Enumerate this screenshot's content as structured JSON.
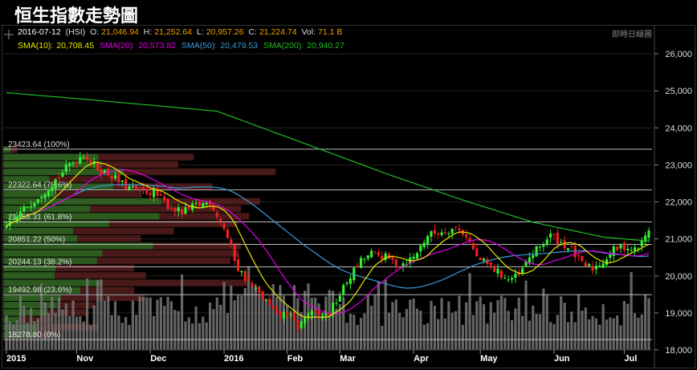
{
  "title": "恒生指數走勢圖",
  "header": {
    "date": "2016-07-12",
    "symbol": "(HSI)",
    "open_label": "O:",
    "open": "21,046.94",
    "high_label": "H:",
    "high": "21,252.64",
    "low_label": "L:",
    "low": "20,957.26",
    "close_label": "C:",
    "close": "21,224.74",
    "vol_label": "Vol:",
    "vol": "71.1 B",
    "control": "即時日線圖"
  },
  "sma": [
    {
      "label": "SMA(10):",
      "value": "20,708.45",
      "color": "#e8e800"
    },
    {
      "label": "SMA(20):",
      "value": "20,573.82",
      "color": "#e000e0"
    },
    {
      "label": "SMA(50):",
      "value": "20,479.53",
      "color": "#3a9ad9"
    },
    {
      "label": "SMA(200):",
      "value": "20,940.27",
      "color": "#22bb22"
    }
  ],
  "colors": {
    "up": "#33ee33",
    "down": "#ee2020",
    "volume": "#777777",
    "fib": "#bbbbbb",
    "grid": "#222222"
  },
  "chart_data": {
    "type": "candlestick",
    "ylim": [
      18000,
      26500
    ],
    "y_ticks": [
      "26,000",
      "25,000",
      "24,000",
      "23,000",
      "22,000",
      "21,000",
      "20,000",
      "19,000",
      "18,000"
    ],
    "x_labels": [
      {
        "label": "2015",
        "index": 0
      },
      {
        "label": "Nov",
        "index": 20
      },
      {
        "label": "Dec",
        "index": 41
      },
      {
        "label": "2016",
        "index": 62
      },
      {
        "label": "Feb",
        "index": 80
      },
      {
        "label": "Mar",
        "index": 95
      },
      {
        "label": "Apr",
        "index": 116
      },
      {
        "label": "May",
        "index": 135
      },
      {
        "label": "Jun",
        "index": 156
      },
      {
        "label": "Jul",
        "index": 176
      }
    ],
    "fib_levels": [
      {
        "label": "23423.64 (100%)",
        "value": 23423.64
      },
      {
        "label": "22322.64 (78.6%)",
        "value": 22322.64
      },
      {
        "label": "21458.31 (61.8%)",
        "value": 21458.31
      },
      {
        "label": "20851.22 (50%)",
        "value": 20851.22
      },
      {
        "label": "20244.13 (38.2%)",
        "value": 20244.13
      },
      {
        "label": "19492.98 (23.6%)",
        "value": 19492.98
      },
      {
        "label": "18278.80 (0%)",
        "value": 18278.8
      }
    ],
    "candles": 184,
    "close_anchors": [
      [
        0,
        21300
      ],
      [
        6,
        21900
      ],
      [
        12,
        22400
      ],
      [
        18,
        23000
      ],
      [
        22,
        23300
      ],
      [
        26,
        22900
      ],
      [
        30,
        22700
      ],
      [
        34,
        22400
      ],
      [
        38,
        22300
      ],
      [
        42,
        22250
      ],
      [
        46,
        21900
      ],
      [
        50,
        21700
      ],
      [
        54,
        21900
      ],
      [
        58,
        22000
      ],
      [
        62,
        21300
      ],
      [
        66,
        20200
      ],
      [
        70,
        19700
      ],
      [
        74,
        19300
      ],
      [
        77,
        18900
      ],
      [
        80,
        19000
      ],
      [
        83,
        18600
      ],
      [
        86,
        19000
      ],
      [
        89,
        18900
      ],
      [
        92,
        19000
      ],
      [
        95,
        19500
      ],
      [
        98,
        20000
      ],
      [
        101,
        20400
      ],
      [
        104,
        20600
      ],
      [
        108,
        20500
      ],
      [
        112,
        20300
      ],
      [
        116,
        20500
      ],
      [
        120,
        21100
      ],
      [
        124,
        21200
      ],
      [
        128,
        21300
      ],
      [
        131,
        21100
      ],
      [
        134,
        20500
      ],
      [
        137,
        20300
      ],
      [
        140,
        20100
      ],
      [
        143,
        19900
      ],
      [
        146,
        20000
      ],
      [
        149,
        20500
      ],
      [
        152,
        20800
      ],
      [
        155,
        21100
      ],
      [
        158,
        20900
      ],
      [
        161,
        20700
      ],
      [
        164,
        20300
      ],
      [
        167,
        20200
      ],
      [
        170,
        20400
      ],
      [
        173,
        20700
      ],
      [
        176,
        20800
      ],
      [
        179,
        20700
      ],
      [
        181,
        20900
      ],
      [
        183,
        21224.74
      ]
    ],
    "sma200_anchors": [
      [
        0,
        24950
      ],
      [
        25,
        24750
      ],
      [
        60,
        24450
      ],
      [
        90,
        23400
      ],
      [
        110,
        22700
      ],
      [
        130,
        22050
      ],
      [
        150,
        21450
      ],
      [
        170,
        21050
      ],
      [
        183,
        20940
      ]
    ],
    "volume_profile_note": "horizontal volume-at-price bars on left"
  }
}
